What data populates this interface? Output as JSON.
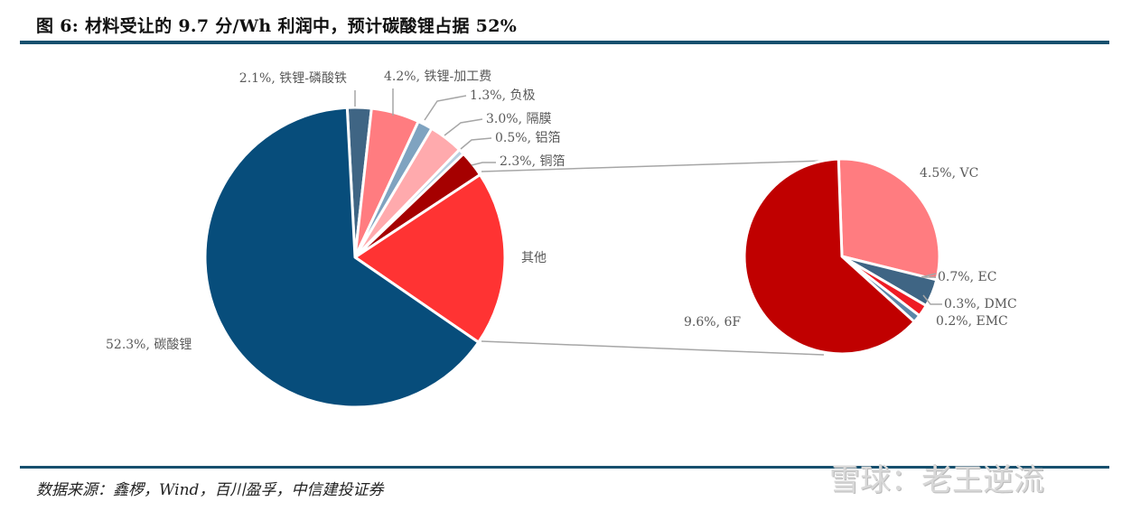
{
  "title": "图 6: 材料受让的 9.7 分/Wh 利润中，预计碳酸锂占据 52%",
  "source": "数据来源：鑫椤，Wind，百川盈孚，中信建投证券",
  "watermark": "雪球：老王逆流",
  "colors": {
    "rule": "#17506e",
    "label_text": "#595959",
    "connector": "#a6a6a6"
  },
  "chart_data": {
    "type": "pie",
    "subtype": "pie-of-pie",
    "title": "图 6: 材料受让的 9.7 分/Wh 利润中，预计碳酸锂占据 52%",
    "unit": "%",
    "main_pie": {
      "slices": [
        {
          "name": "铁锂-磷酸铁",
          "value": 2.1,
          "label": "2.1%, 铁锂-磷酸铁",
          "color": "#3f6584"
        },
        {
          "name": "铁锂-加工费",
          "value": 4.2,
          "label": "4.2%, 铁锂-加工费",
          "color": "#ff7c80"
        },
        {
          "name": "负极",
          "value": 1.3,
          "label": "1.3%, 负极",
          "color": "#7fa3c0"
        },
        {
          "name": "隔膜",
          "value": 3.0,
          "label": "3.0%, 隔膜",
          "color": "#ffaaad"
        },
        {
          "name": "铝箔",
          "value": 0.5,
          "label": "0.5%, 铝箔",
          "color": "#b8cfe0"
        },
        {
          "name": "铜箔",
          "value": 2.3,
          "label": "2.3%, 铜箔",
          "color": "#a50000"
        },
        {
          "name": "其他",
          "value": 15.3,
          "label": "其他",
          "color": "#ff3333"
        },
        {
          "name": "碳酸锂",
          "value": 52.3,
          "label": "52.3%, 碳酸锂",
          "color": "#074d7b"
        }
      ]
    },
    "secondary_pie": {
      "parent": "其他",
      "slices": [
        {
          "name": "VC",
          "value": 4.5,
          "label": "4.5%, VC",
          "color": "#ff7c80"
        },
        {
          "name": "EC",
          "value": 0.7,
          "label": "0.7%, EC",
          "color": "#3f6584"
        },
        {
          "name": "DMC",
          "value": 0.3,
          "label": "0.3%, DMC",
          "color": "#ee1c24"
        },
        {
          "name": "EMC",
          "value": 0.2,
          "label": "0.2%, EMC",
          "color": "#5b87a8"
        },
        {
          "name": "6F",
          "value": 9.6,
          "label": "9.6%, 6F",
          "color": "#c00000"
        }
      ]
    },
    "legend": "none",
    "data_labels": true
  }
}
